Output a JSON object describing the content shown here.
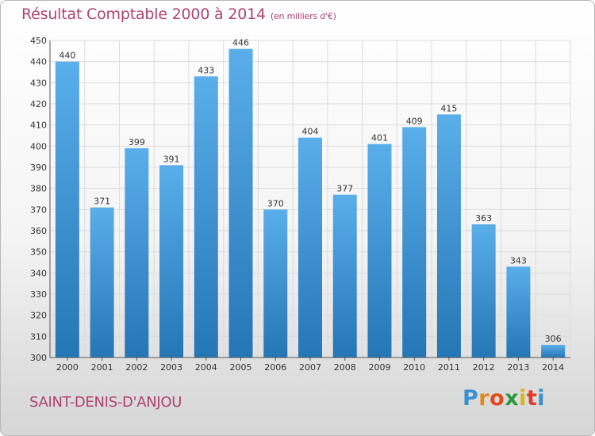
{
  "header": {
    "title": "Résultat Comptable 2000 à 2014",
    "subtitle": "(en milliers d'€)"
  },
  "footer": {
    "place": "SAINT-DENIS-D'ANJOU",
    "logo_letters": [
      "P",
      "r",
      "o",
      "x",
      "i",
      "t",
      "i"
    ]
  },
  "colors": {
    "accent": "#b0436f",
    "bar_top": "#5aaeea",
    "bar_bottom": "#2476b4",
    "logo": [
      "#3a8fd0",
      "#e08a1e",
      "#e04a1a",
      "#2e9a3e",
      "#d8b61a",
      "#e23a2a",
      "#3a8fd0"
    ]
  },
  "chart_data": {
    "type": "bar",
    "title": "Résultat Comptable 2000 à 2014",
    "xlabel": "",
    "ylabel": "",
    "categories": [
      "2000",
      "2001",
      "2002",
      "2003",
      "2004",
      "2005",
      "2006",
      "2007",
      "2008",
      "2009",
      "2010",
      "2011",
      "2012",
      "2013",
      "2014"
    ],
    "values": [
      440,
      371,
      399,
      391,
      433,
      446,
      370,
      404,
      377,
      401,
      409,
      415,
      363,
      343,
      306
    ],
    "ylim": [
      300,
      450
    ],
    "yticks": [
      300,
      310,
      320,
      330,
      340,
      350,
      360,
      370,
      380,
      390,
      400,
      410,
      420,
      430,
      440,
      450
    ],
    "grid": true
  }
}
